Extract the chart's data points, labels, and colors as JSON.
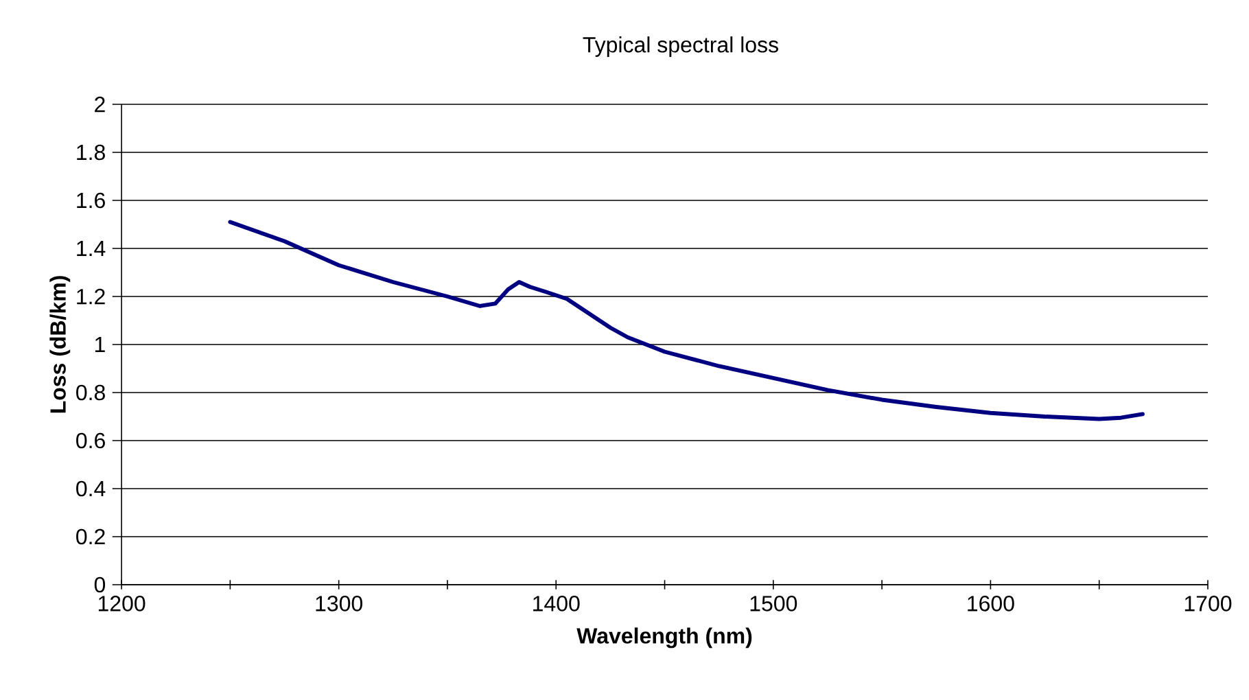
{
  "chart_data": {
    "type": "line",
    "title": "Typical spectral loss",
    "xlabel": "Wavelength (nm)",
    "ylabel": "Loss (dB/km)",
    "x": [
      1250,
      1275,
      1300,
      1325,
      1350,
      1365,
      1372,
      1378,
      1383,
      1388,
      1395,
      1405,
      1415,
      1425,
      1433,
      1450,
      1475,
      1500,
      1525,
      1550,
      1575,
      1600,
      1625,
      1650,
      1660,
      1670
    ],
    "series": [
      {
        "color": "#000080",
        "values": [
          1.51,
          1.43,
          1.33,
          1.26,
          1.2,
          1.16,
          1.17,
          1.23,
          1.26,
          1.24,
          1.22,
          1.19,
          1.13,
          1.07,
          1.03,
          0.97,
          0.91,
          0.86,
          0.81,
          0.77,
          0.74,
          0.715,
          0.7,
          0.69,
          0.695,
          0.71
        ]
      }
    ],
    "xlim": [
      1200,
      1700
    ],
    "ylim": [
      0,
      2
    ],
    "xticks": [
      1200,
      {
        "value": 1250,
        "label": null
      },
      1300,
      {
        "value": 1350,
        "label": null
      },
      1400,
      {
        "value": 1450,
        "label": null
      },
      1500,
      {
        "value": 1550,
        "label": null
      },
      1600,
      {
        "value": 1650,
        "label": null
      },
      1700
    ],
    "yticks": [
      0,
      0.2,
      0.4,
      0.6,
      0.8,
      1,
      1.2,
      1.4,
      1.6,
      1.8,
      2
    ],
    "grid": "y",
    "marker": "none",
    "line_style": "solid"
  }
}
